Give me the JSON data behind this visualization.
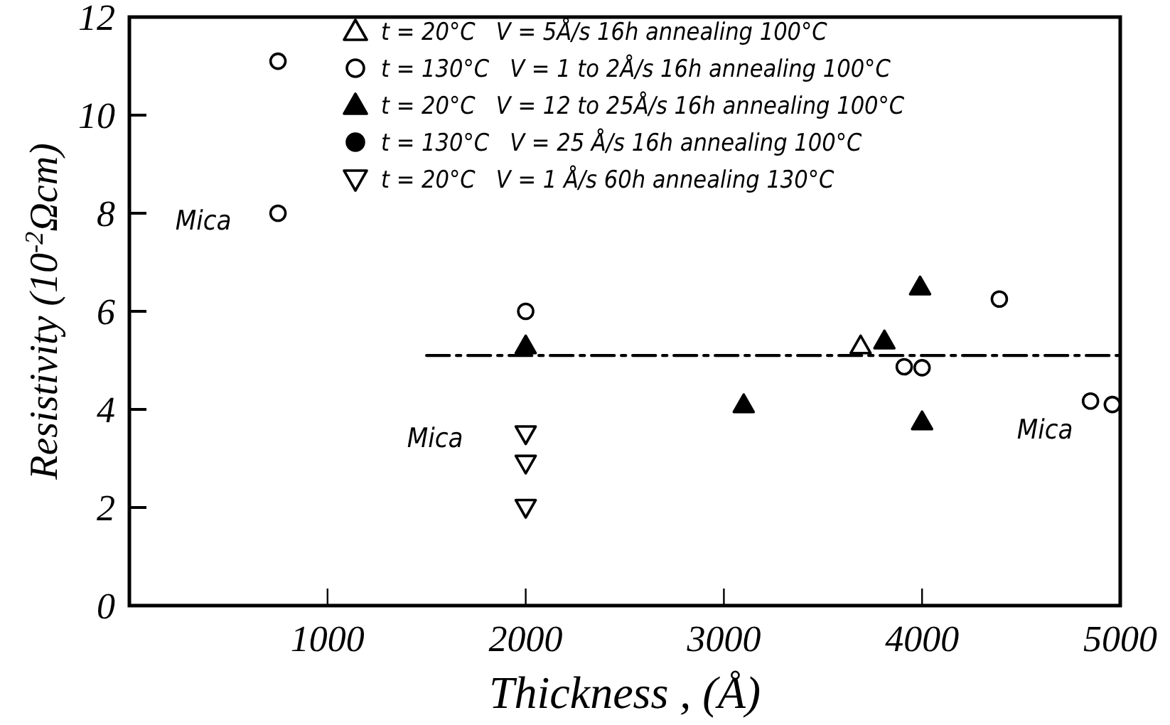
{
  "chart_data": {
    "type": "scatter",
    "xlabel": "Thickness , (Å)",
    "ylabel": "Resistivity (10$^{-2}$Ωcm)",
    "xlim": [
      0,
      5000
    ],
    "xticks": [
      1000,
      2000,
      3000,
      4000,
      5000
    ],
    "ylim": [
      0,
      12
    ],
    "yticks": [
      0,
      2,
      4,
      6,
      8,
      10,
      12
    ],
    "grid": false,
    "legend": "top right",
    "series": [
      {
        "name": "t = 20°C   V = 5Å/s 16h annealing 100°C",
        "color": "#000000",
        "marker": "triangle-open",
        "x": [
          3690
        ],
        "values": [
          5.3
        ]
      },
      {
        "name": "t = 130°C   V = 1 to 2Å/s 16h annealing 100°C",
        "color": "#000000",
        "marker": "circle-open",
        "x": [
          750,
          750,
          2000,
          3910,
          4000,
          4390,
          4850,
          4960
        ],
        "values": [
          11.1,
          8.0,
          6.0,
          4.87,
          4.85,
          6.25,
          4.17,
          4.1
        ]
      },
      {
        "name": "t = 20°C   V = 12 to 25Å/s 16h annealing 100°C",
        "color": "#000000",
        "marker": "triangle",
        "x": [
          2000,
          3100,
          3810,
          3990,
          4000
        ],
        "values": [
          5.3,
          4.1,
          5.4,
          6.5,
          3.75
        ]
      },
      {
        "name": "t = 130°C   V = 25 Å/s 16h annealing 100°C",
        "color": "#000000",
        "marker": "circle"
      },
      {
        "name": "t = 20°C   V = 1 Å/s 60h annealing 130°C",
        "color": "#000000",
        "marker": "triangle-down-open",
        "x": [
          2000,
          2000,
          2000
        ],
        "values": [
          3.5,
          2.9,
          2.0
        ]
      },
      {
        "type": "line",
        "color": "#000000",
        "line_style": "dashed",
        "x": [
          1500,
          5000
        ],
        "values": [
          5.1,
          5.1
        ]
      }
    ],
    "annotations": [
      "Mica",
      "Mica",
      "Mica"
    ]
  }
}
